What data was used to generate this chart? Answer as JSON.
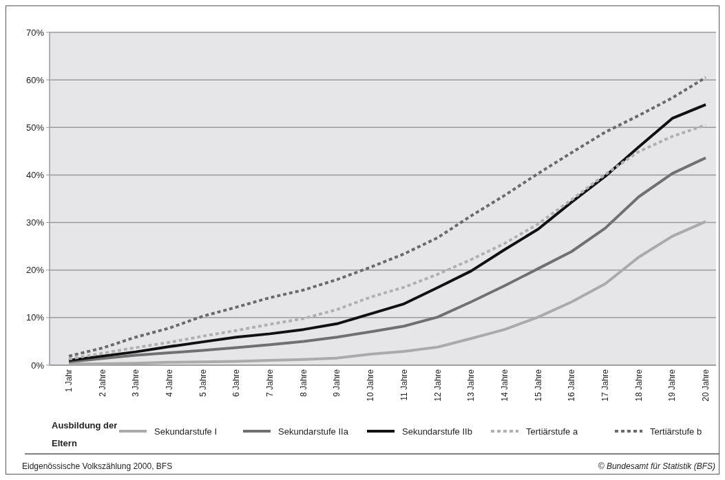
{
  "chart_data": {
    "type": "line",
    "categories": [
      "1 Jahr",
      "2 Jahre",
      "3 Jahre",
      "4 Jahre",
      "5 Jahre",
      "6 Jahre",
      "7 Jahre",
      "8 Jahre",
      "9 Jahre",
      "10 Jahre",
      "11 Jahre",
      "12 Jahre",
      "13 Jahre",
      "14 Jahre",
      "15 Jahre",
      "16 Jahre",
      "17 Jahre",
      "18 Jahre",
      "19 Jahre",
      "20 Jahre"
    ],
    "series": [
      {
        "name": "Sekundarstufe I",
        "color": "#aaaaaa",
        "line_style": "solid",
        "values": [
          0.2,
          0.3,
          0.4,
          0.6,
          0.7,
          0.8,
          1.0,
          1.2,
          1.5,
          2.3,
          2.9,
          3.8,
          5.6,
          7.5,
          10.1,
          13.3,
          17.1,
          22.7,
          27.1,
          30.2
        ]
      },
      {
        "name": "Sekundarstufe IIa",
        "color": "#707070",
        "line_style": "solid",
        "values": [
          0.7,
          1.4,
          2.1,
          2.6,
          3.1,
          3.7,
          4.3,
          5.0,
          5.9,
          7.0,
          8.2,
          10.1,
          13.3,
          16.7,
          20.3,
          23.9,
          28.8,
          35.4,
          40.3,
          43.6
        ]
      },
      {
        "name": "Sekundarstufe IIb",
        "color": "#111111",
        "line_style": "solid",
        "values": [
          1.0,
          1.9,
          2.8,
          3.9,
          4.9,
          5.9,
          6.6,
          7.5,
          8.7,
          10.8,
          12.9,
          16.3,
          19.8,
          24.3,
          28.6,
          34.3,
          39.7,
          45.9,
          51.9,
          54.8
        ]
      },
      {
        "name": "Tertiärstufe a",
        "color": "#b0b0b0",
        "line_style": "dotted",
        "values": [
          1.3,
          2.5,
          3.7,
          4.8,
          6.1,
          7.3,
          8.6,
          9.8,
          11.7,
          14.3,
          16.4,
          19.1,
          22.2,
          25.6,
          29.7,
          34.8,
          40.1,
          44.9,
          48.1,
          50.5
        ]
      },
      {
        "name": "Tertiärstufe b",
        "color": "#6a6a6a",
        "line_style": "dotted",
        "values": [
          1.9,
          3.6,
          5.9,
          7.8,
          10.3,
          12.2,
          14.2,
          15.8,
          18.0,
          20.6,
          23.4,
          26.8,
          31.4,
          35.7,
          40.3,
          44.7,
          49.0,
          52.5,
          56.2,
          60.5
        ]
      }
    ],
    "ylim": [
      0,
      70
    ],
    "yticks": [
      {
        "value": 0,
        "label": "0%"
      },
      {
        "value": 10,
        "label": "10%"
      },
      {
        "value": 20,
        "label": "20%"
      },
      {
        "value": 30,
        "label": "30%"
      },
      {
        "value": 40,
        "label": "40%"
      },
      {
        "value": 50,
        "label": "50%"
      },
      {
        "value": 60,
        "label": "60%"
      },
      {
        "value": 70,
        "label": "70%"
      }
    ],
    "grid": "y",
    "legend": "bottom",
    "legend_title": "Ausbildung der Eltern",
    "annotations": [
      "Eidgenössische Volkszählung 2000, BFS",
      "© Bundesamt für Statistik (BFS)"
    ]
  }
}
